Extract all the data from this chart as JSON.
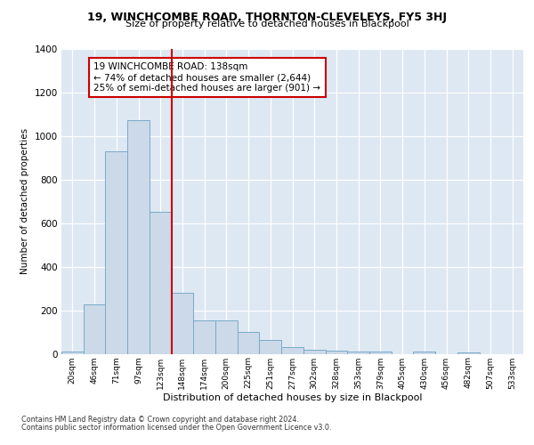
{
  "title1": "19, WINCHCOMBE ROAD, THORNTON-CLEVELEYS, FY5 3HJ",
  "title2": "Size of property relative to detached houses in Blackpool",
  "xlabel": "Distribution of detached houses by size in Blackpool",
  "ylabel": "Number of detached properties",
  "bar_values": [
    10,
    225,
    930,
    1075,
    650,
    280,
    155,
    155,
    100,
    65,
    30,
    20,
    15,
    10,
    10,
    0,
    10,
    0,
    5,
    0,
    0
  ],
  "bar_labels": [
    "20sqm",
    "46sqm",
    "71sqm",
    "97sqm",
    "123sqm",
    "148sqm",
    "174sqm",
    "200sqm",
    "225sqm",
    "251sqm",
    "277sqm",
    "302sqm",
    "328sqm",
    "353sqm",
    "379sqm",
    "405sqm",
    "430sqm",
    "456sqm",
    "482sqm",
    "507sqm",
    "533sqm"
  ],
  "bar_color": "#ccd9e8",
  "bar_edge_color": "#7aaac8",
  "vline_color": "#cc0000",
  "vline_x": 4.5,
  "annotation_text": "19 WINCHCOMBE ROAD: 138sqm\n← 74% of detached houses are smaller (2,644)\n25% of semi-detached houses are larger (901) →",
  "ylim": [
    0,
    1400
  ],
  "yticks": [
    0,
    200,
    400,
    600,
    800,
    1000,
    1200,
    1400
  ],
  "bg_color": "#dde8f3",
  "footer1": "Contains HM Land Registry data © Crown copyright and database right 2024.",
  "footer2": "Contains public sector information licensed under the Open Government Licence v3.0."
}
